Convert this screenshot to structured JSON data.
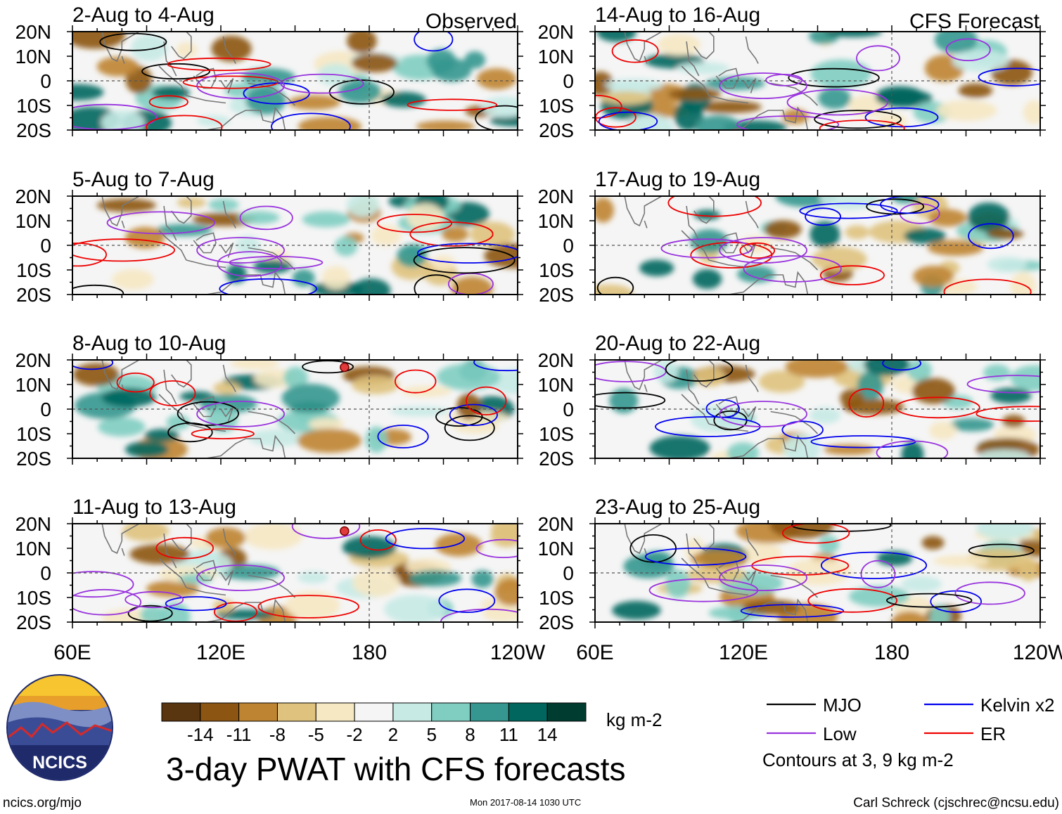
{
  "chart_data": {
    "type": "heatmap",
    "title": "3-day PWAT with CFS forecasts",
    "units": "kg m-2",
    "columns": [
      {
        "label": "Observed",
        "panels": [
          "2-Aug to 4-Aug",
          "5-Aug to 7-Aug",
          "8-Aug to 10-Aug",
          "11-Aug to 13-Aug"
        ]
      },
      {
        "label": "CFS Forecast",
        "panels": [
          "14-Aug to 16-Aug",
          "17-Aug to 19-Aug",
          "20-Aug to 22-Aug",
          "23-Aug to 25-Aug"
        ]
      }
    ],
    "y_ticks": [
      "20N",
      "10N",
      "0",
      "10S",
      "20S"
    ],
    "x_ticks": [
      "60E",
      "120E",
      "180",
      "120W"
    ],
    "lat_range": [
      -20,
      20
    ],
    "lon_range": [
      60,
      240
    ],
    "colorbar": {
      "ticks": [
        "-14",
        "-11",
        "-8",
        "-5",
        "-2",
        "2",
        "5",
        "8",
        "11",
        "14"
      ],
      "colors": [
        "#593510",
        "#8c5512",
        "#bf8431",
        "#dfc27d",
        "#f6e8c3",
        "#f5f5f5",
        "#c7eae5",
        "#80cdc1",
        "#35978f",
        "#01665e",
        "#003c30"
      ]
    },
    "legend": {
      "items": [
        {
          "label": "MJO",
          "color": "#000000"
        },
        {
          "label": "Kelvin x2",
          "color": "#0000ee"
        },
        {
          "label": "Low",
          "color": "#9933dd"
        },
        {
          "label": "ER",
          "color": "#ee0000"
        }
      ],
      "note": "Contours at 3, 9 kg m-2"
    },
    "storm_markers": [
      {
        "panel": "8-Aug to 10-Aug",
        "lon": 170,
        "lat": 17
      },
      {
        "panel": "11-Aug to 13-Aug",
        "lon": 170,
        "lat": 17
      }
    ]
  },
  "footer": {
    "left": "ncics.org/mjo",
    "center": "Mon 2017-08-14 1030 UTC",
    "right": "Carl Schreck (cjschrec@ncsu.edu)"
  },
  "logo": {
    "text": "NCICS"
  }
}
